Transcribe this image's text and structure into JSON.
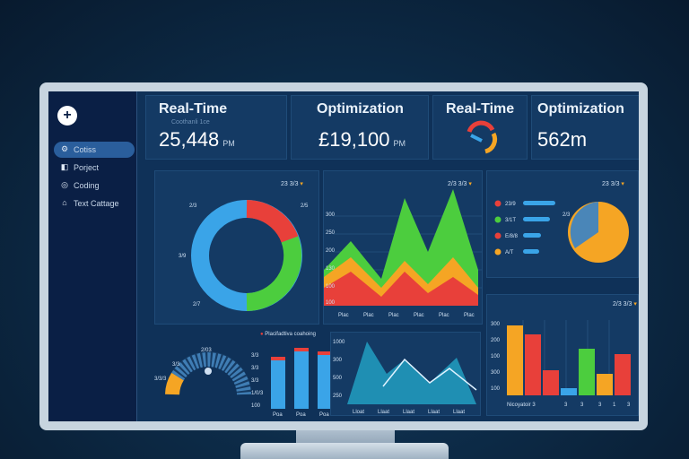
{
  "sidebar": {
    "logo_glyph": "+",
    "items": [
      {
        "label": "Cotiss",
        "icon": "settings-icon",
        "active": true
      },
      {
        "label": "Porject",
        "icon": "project-icon",
        "active": false
      },
      {
        "label": "Coding",
        "icon": "coding-icon",
        "active": false
      },
      {
        "label": "Text Cattage",
        "icon": "storage-icon",
        "active": false
      }
    ]
  },
  "kpis": [
    {
      "title": "Real-Time",
      "subtitle": "Coothanli 1ce",
      "value": "25,448",
      "unit": "PM"
    },
    {
      "title": "Optimization",
      "value": "£19,100",
      "unit": "PM"
    },
    {
      "title": "Real-Time",
      "value": ""
    },
    {
      "title": "Optimization",
      "value": "562m"
    }
  ],
  "colors": {
    "red": "#e8403a",
    "green": "#4ccd3e",
    "blue": "#3aa4e8",
    "orange": "#f5a524",
    "teal": "#1f8fb3"
  },
  "panels": {
    "donut": {
      "header": "23 3/3",
      "labels": [
        "2/3",
        "2/5",
        "3/9",
        "2/7"
      ]
    },
    "area": {
      "header": "2/3 3/3",
      "y_labels": [
        "300",
        "250",
        "200",
        "130",
        "100",
        "100"
      ],
      "x_labels": [
        "Plac",
        "Plac",
        "Plac",
        "Plac",
        "Plac",
        "Plac"
      ]
    },
    "legend_pie": {
      "header": "23 3/3",
      "legend": [
        "23/9",
        "3/1T",
        "E/8/8",
        "A/T"
      ],
      "label": "2/3"
    },
    "gauge": {
      "top_label": "2/03",
      "side_labels": [
        "3/3/3",
        "3/3"
      ]
    },
    "bars": {
      "title": "Placifadtiva coahoing",
      "y_labels": [
        "3/3",
        "3/3",
        "3/3",
        "1/0/3",
        "100"
      ],
      "x_labels": [
        "Poa",
        "Poa",
        "Poa"
      ]
    },
    "triangles": {
      "y_labels": [
        "1000",
        "300",
        "500",
        "250"
      ],
      "x_labels": [
        "Lloat",
        "Llaat",
        "Llaat",
        "Llaat",
        "Llaat"
      ]
    },
    "columns": {
      "header": "2/3 3/3",
      "y_labels": [
        "300",
        "200",
        "100",
        "300",
        "100"
      ],
      "x_labels": [
        "Nicoyatoir 3",
        "3",
        "3",
        "3",
        "1",
        "3"
      ]
    }
  }
}
